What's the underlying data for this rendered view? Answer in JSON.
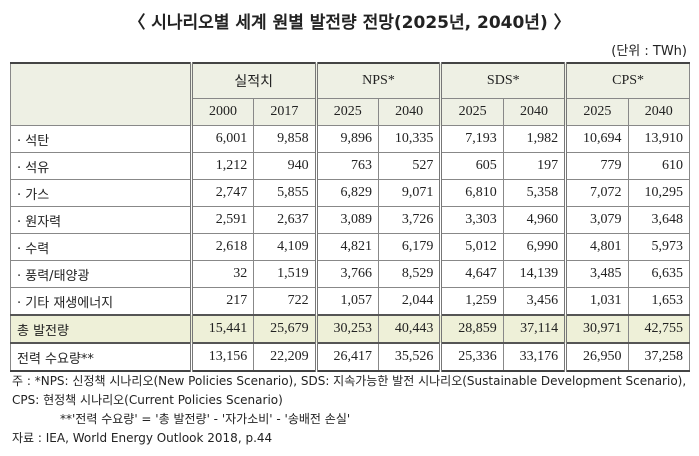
{
  "title": "〈 시나리오별 세계 원별 발전량 전망(2025년, 2040년) 〉",
  "unit": "(단위 : TWh)",
  "table": {
    "groups": [
      "실적치",
      "NPS*",
      "SDS*",
      "CPS*"
    ],
    "years": [
      "2000",
      "2017",
      "2025",
      "2040",
      "2025",
      "2040",
      "2025",
      "2040"
    ],
    "rows": [
      [
        "· 석탄",
        "6,001",
        "9,858",
        "9,896",
        "10,335",
        "7,193",
        "1,982",
        "10,694",
        "13,910"
      ],
      [
        "· 석유",
        "1,212",
        "940",
        "763",
        "527",
        "605",
        "197",
        "779",
        "610"
      ],
      [
        "· 가스",
        "2,747",
        "5,855",
        "6,829",
        "9,071",
        "6,810",
        "5,358",
        "7,072",
        "10,295"
      ],
      [
        "· 원자력",
        "2,591",
        "2,637",
        "3,089",
        "3,726",
        "3,303",
        "4,960",
        "3,079",
        "3,648"
      ],
      [
        "· 수력",
        "2,618",
        "4,109",
        "4,821",
        "6,179",
        "5,012",
        "6,990",
        "4,801",
        "5,973"
      ],
      [
        "· 풍력/태양광",
        "32",
        "1,519",
        "3,766",
        "8,529",
        "4,647",
        "14,139",
        "3,485",
        "6,635"
      ],
      [
        "· 기타 재생에너지",
        "217",
        "722",
        "1,057",
        "2,044",
        "1,259",
        "3,456",
        "1,031",
        "1,653"
      ],
      [
        "총 발전량",
        "15,441",
        "25,679",
        "30,253",
        "40,443",
        "28,859",
        "37,114",
        "30,971",
        "42,755"
      ],
      [
        "전력 수요량**",
        "13,156",
        "22,209",
        "26,417",
        "35,526",
        "25,336",
        "33,176",
        "26,950",
        "37,258"
      ]
    ]
  },
  "notes": [
    "주 : *NPS: 신정책 시나리오(New Policies Scenario), SDS: 지속가능한 발전 시나리오(Sustainable Development Scenario), CPS: 현정책 시나리오(Current Policies Scenario)",
    "**'전력 수요량' = '총 발전량' - '자가소비' - '송배전 손실'",
    "자료 : IEA, World Energy Outlook 2018, p.44"
  ]
}
